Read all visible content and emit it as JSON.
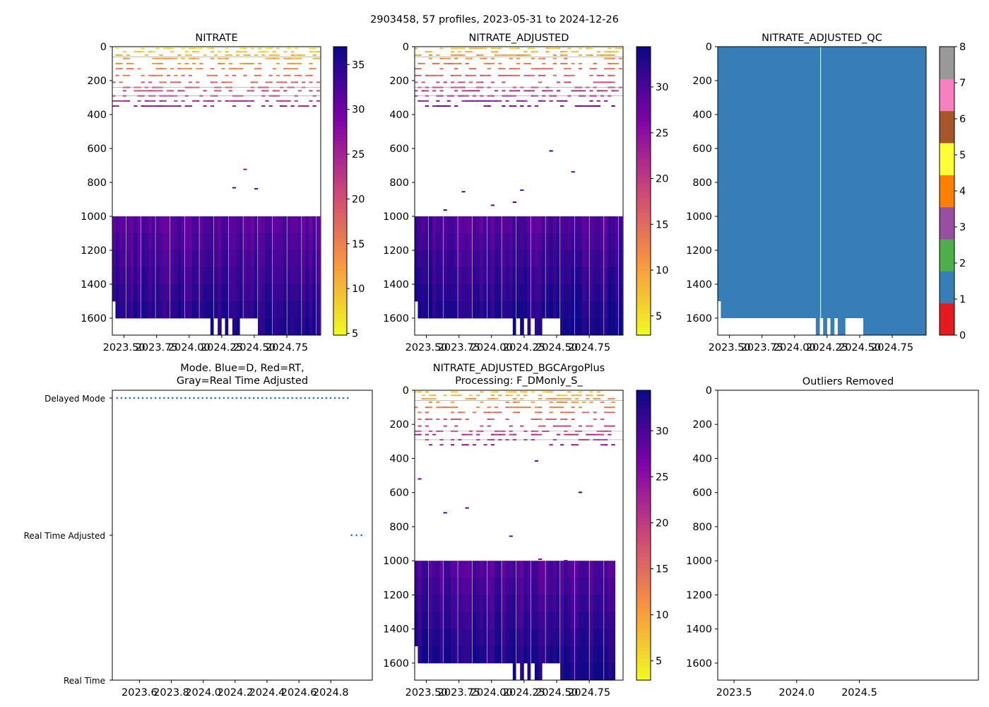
{
  "figure_title": "2903458, 57 profiles, 2023-05-31 to 2024-12-26",
  "chart_data": [
    {
      "id": "nitrate",
      "type": "heatmap",
      "title": "NITRATE",
      "xlim": [
        2023.41,
        2025.01
      ],
      "xticks": [
        "2023.50",
        "2023.75",
        "2024.00",
        "2024.25",
        "2024.50",
        "2024.75"
      ],
      "ylim": [
        1700,
        0
      ],
      "yticks": [
        "0",
        "200",
        "400",
        "600",
        "800",
        "1000",
        "1200",
        "1400",
        "1600"
      ],
      "colorbar": {
        "range": [
          4.8,
          37
        ],
        "ticks": [
          "5",
          "10",
          "15",
          "20",
          "25",
          "30",
          "35"
        ],
        "cmap": "plasma_r"
      },
      "n_profiles": 57,
      "profile_bottom_depth": [
        1500,
        1600,
        1600,
        1600,
        1600,
        1600,
        1600,
        1600,
        1600,
        1600,
        1600,
        1600,
        1600,
        1600,
        1600,
        1600,
        1600,
        1600,
        1600,
        1600,
        1600,
        1600,
        1600,
        1600,
        1600,
        1600,
        1600,
        1700,
        1600,
        1700,
        1600,
        1700,
        1600,
        1700,
        1700,
        1600,
        1600,
        1600,
        1600,
        1600,
        1700,
        1700,
        1700,
        1700,
        1700,
        1700,
        1700,
        1700,
        1700,
        1700,
        1700,
        1700,
        1700,
        1700,
        1700,
        1700,
        1700
      ],
      "deep_layer_top": 1000,
      "deep_values_range": [
        28,
        36
      ],
      "shallow_values_range": [
        5,
        25
      ]
    },
    {
      "id": "nitrate-adjusted",
      "type": "heatmap",
      "title": "NITRATE_ADJUSTED",
      "xlim": [
        2023.41,
        2025.01
      ],
      "xticks": [
        "2023.50",
        "2023.75",
        "2024.00",
        "2024.25",
        "2024.50",
        "2024.75"
      ],
      "ylim": [
        1700,
        0
      ],
      "yticks": [
        "0",
        "200",
        "400",
        "600",
        "800",
        "1000",
        "1200",
        "1400",
        "1600"
      ],
      "colorbar": {
        "range": [
          2.9,
          34.4
        ],
        "ticks": [
          "5",
          "10",
          "15",
          "20",
          "25",
          "30"
        ],
        "cmap": "plasma_r"
      }
    },
    {
      "id": "nitrate-adjusted-qc",
      "type": "heatmap",
      "title": "NITRATE_ADJUSTED_QC",
      "xlim": [
        2023.41,
        2025.01
      ],
      "xticks": [
        "2023.50",
        "2023.75",
        "2024.00",
        "2024.25",
        "2024.50",
        "2024.75"
      ],
      "ylim": [
        1700,
        0
      ],
      "yticks": [
        "0",
        "200",
        "400",
        "600",
        "800",
        "1000",
        "1200",
        "1400",
        "1600"
      ],
      "qc_value": 1,
      "colorbar": {
        "range": [
          0,
          8
        ],
        "ticks": [
          "0",
          "1",
          "2",
          "3",
          "4",
          "5",
          "6",
          "7",
          "8"
        ],
        "colors": [
          "#e41a1c",
          "#377eb8",
          "#4daf4a",
          "#984ea3",
          "#ff7f00",
          "#ffff33",
          "#a65628",
          "#f781bf",
          "#999999"
        ]
      }
    },
    {
      "id": "mode",
      "type": "scatter",
      "title_line1": "Mode. Blue=D, Red=RT,",
      "title_line2": "Gray=Real Time Adjusted",
      "xlim": [
        2023.43,
        2025.06
      ],
      "xticks": [
        "2023.6",
        "2023.8",
        "2024.0",
        "2024.2",
        "2024.4",
        "2024.6",
        "2024.8"
      ],
      "yticks": [
        "Real Time",
        "Real Time Adjusted",
        "Delayed Mode"
      ],
      "delayed_count": 55,
      "rt_adjusted_count": 2,
      "color": "#1f77b4"
    },
    {
      "id": "nitrate-bgcargoplus",
      "type": "heatmap",
      "title_line1": "NITRATE_ADJUSTED_BGCArgoPlus",
      "title_line2": "Processing: F_DMonly_S_",
      "xlim": [
        2023.41,
        2025.01
      ],
      "xticks": [
        "2023.50",
        "2023.75",
        "2024.00",
        "2024.25",
        "2024.50",
        "2024.75"
      ],
      "ylim": [
        1700,
        0
      ],
      "yticks": [
        "0",
        "200",
        "400",
        "600",
        "800",
        "1000",
        "1200",
        "1400",
        "1600"
      ],
      "colorbar": {
        "range": [
          2.9,
          34.4
        ],
        "ticks": [
          "5",
          "10",
          "15",
          "20",
          "25",
          "30"
        ],
        "cmap": "plasma_r"
      }
    },
    {
      "id": "outliers",
      "type": "scatter",
      "title": "Outliers Removed",
      "xlim": [
        2023.37,
        2025.45
      ],
      "xticks": [
        "2023.5",
        "2024.0",
        "2024.5"
      ],
      "ylim": [
        1700,
        0
      ],
      "yticks": [
        "0",
        "200",
        "400",
        "600",
        "800",
        "1000",
        "1200",
        "1400",
        "1600"
      ],
      "points": []
    }
  ]
}
